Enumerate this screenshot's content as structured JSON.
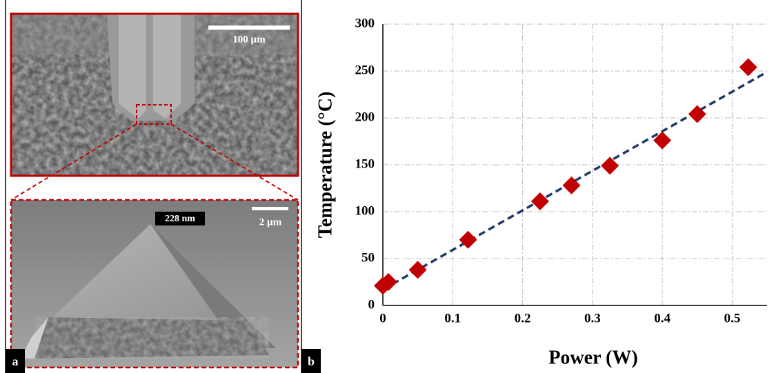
{
  "figure": {
    "panel_a": {
      "label": "a",
      "scale_bar_top": "100 µm",
      "scale_bar_bottom": "2 µm",
      "tip_width": "228 nm"
    },
    "panel_b": {
      "label": "b"
    }
  },
  "chart_data": {
    "type": "scatter",
    "x_label": "Power (W)",
    "y_label": "Temperature (°C)",
    "x": [
      0,
      0.008,
      0.05,
      0.122,
      0.225,
      0.27,
      0.325,
      0.4,
      0.45,
      0.523
    ],
    "values": [
      21,
      25,
      38,
      70,
      111,
      128,
      149,
      176,
      204,
      254
    ],
    "color": "#c00000",
    "trendline": {
      "x": [
        0,
        0.55
      ],
      "values": [
        17,
        249
      ],
      "color": "#203864"
    },
    "xlim": [
      0,
      0.55
    ],
    "xticks": [
      0,
      0.1,
      0.2,
      0.3,
      0.4,
      0.5
    ],
    "ylim": [
      0,
      300
    ],
    "yticks": [
      0,
      50,
      100,
      150,
      200,
      250,
      300
    ],
    "grid": true
  }
}
